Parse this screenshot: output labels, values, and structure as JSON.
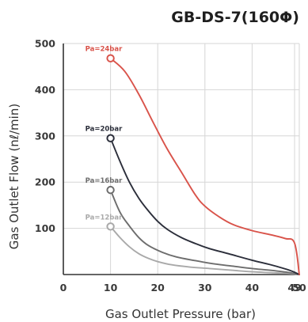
{
  "chart_data": {
    "type": "line",
    "title": "GB-DS-7(160Φ)",
    "xlabel": "Gas Outlet Pressure (bar)",
    "ylabel": "Gas Outlet Flow (nℓ/min)",
    "xlim": [
      0,
      50
    ],
    "ylim": [
      0,
      500
    ],
    "x_ticks": [
      "0",
      "10",
      "20",
      "30",
      "40",
      "49",
      "50"
    ],
    "x_tick_values": [
      0,
      10,
      20,
      30,
      40,
      49,
      50
    ],
    "y_ticks": [
      "100",
      "200",
      "300",
      "400",
      "500"
    ],
    "y_tick_values": [
      100,
      200,
      300,
      400,
      500
    ],
    "grid": true,
    "series": [
      {
        "name": "Pa=24bar",
        "color": "#d9534a",
        "start_marker": true,
        "points": [
          [
            10,
            468
          ],
          [
            13,
            440
          ],
          [
            16,
            390
          ],
          [
            19,
            330
          ],
          [
            22,
            272
          ],
          [
            25,
            222
          ],
          [
            28,
            172
          ],
          [
            30,
            148
          ],
          [
            33,
            125
          ],
          [
            36,
            108
          ],
          [
            40,
            95
          ],
          [
            44,
            86
          ],
          [
            47,
            78
          ],
          [
            49,
            68
          ],
          [
            50,
            0
          ]
        ]
      },
      {
        "name": "Pa=20bar",
        "color": "#2b2e3a",
        "start_marker": true,
        "points": [
          [
            10,
            295
          ],
          [
            12,
            245
          ],
          [
            14,
            200
          ],
          [
            16,
            165
          ],
          [
            18,
            138
          ],
          [
            20,
            115
          ],
          [
            22,
            98
          ],
          [
            25,
            80
          ],
          [
            28,
            67
          ],
          [
            31,
            56
          ],
          [
            35,
            45
          ],
          [
            40,
            31
          ],
          [
            44,
            21
          ],
          [
            48,
            9
          ],
          [
            50,
            0
          ]
        ]
      },
      {
        "name": "Pa=16bar",
        "color": "#6d6d6d",
        "start_marker": true,
        "points": [
          [
            10,
            183
          ],
          [
            12,
            135
          ],
          [
            14,
            105
          ],
          [
            16,
            80
          ],
          [
            18,
            63
          ],
          [
            21,
            48
          ],
          [
            24,
            38
          ],
          [
            28,
            30
          ],
          [
            32,
            23
          ],
          [
            36,
            18
          ],
          [
            40,
            13
          ],
          [
            44,
            9
          ],
          [
            48,
            4
          ],
          [
            50,
            0
          ]
        ]
      },
      {
        "name": "Pa=12bar",
        "color": "#a9a9a9",
        "start_marker": true,
        "points": [
          [
            10,
            104
          ],
          [
            12,
            80
          ],
          [
            14,
            60
          ],
          [
            16,
            45
          ],
          [
            18,
            35
          ],
          [
            20,
            28
          ],
          [
            23,
            21
          ],
          [
            27,
            16
          ],
          [
            31,
            13
          ],
          [
            36,
            9
          ],
          [
            40,
            6
          ],
          [
            44,
            4
          ],
          [
            48,
            2
          ],
          [
            50,
            0
          ]
        ]
      }
    ]
  }
}
